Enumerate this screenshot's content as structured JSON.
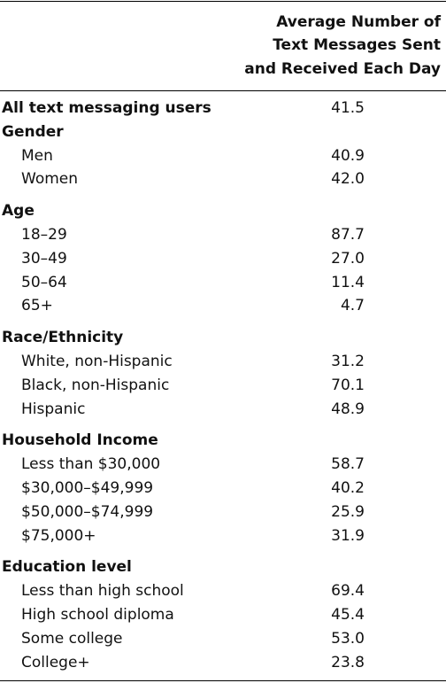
{
  "header": {
    "column_title": [
      "Average Number of",
      "Text Messages Sent",
      "and Received Each Day"
    ]
  },
  "table": {
    "total": {
      "label": "All text messaging users",
      "value": "41.5"
    },
    "groups": [
      {
        "label": "Gender",
        "rows": [
          {
            "label": "Men",
            "value": "40.9"
          },
          {
            "label": "Women",
            "value": "42.0"
          }
        ]
      },
      {
        "label": "Age",
        "rows": [
          {
            "label": "18–29",
            "value": "87.7"
          },
          {
            "label": "30–49",
            "value": "27.0"
          },
          {
            "label": "50–64",
            "value": "11.4"
          },
          {
            "label": "65+",
            "value": "4.7"
          }
        ]
      },
      {
        "label": "Race/Ethnicity",
        "rows": [
          {
            "label": "White, non-Hispanic",
            "value": "31.2"
          },
          {
            "label": "Black, non-Hispanic",
            "value": "70.1"
          },
          {
            "label": "Hispanic",
            "value": "48.9"
          }
        ]
      },
      {
        "label": "Household Income",
        "rows": [
          {
            "label": "Less than $30,000",
            "value": "58.7"
          },
          {
            "label": "$30,000–$49,999",
            "value": "40.2"
          },
          {
            "label": "$50,000–$74,999",
            "value": "25.9"
          },
          {
            "label": "$75,000+",
            "value": "31.9"
          }
        ]
      },
      {
        "label": "Education level",
        "rows": [
          {
            "label": "Less than high school",
            "value": "69.4"
          },
          {
            "label": "High school diploma",
            "value": "45.4"
          },
          {
            "label": "Some college",
            "value": "53.0"
          },
          {
            "label": "College+",
            "value": "23.8"
          }
        ]
      }
    ]
  }
}
